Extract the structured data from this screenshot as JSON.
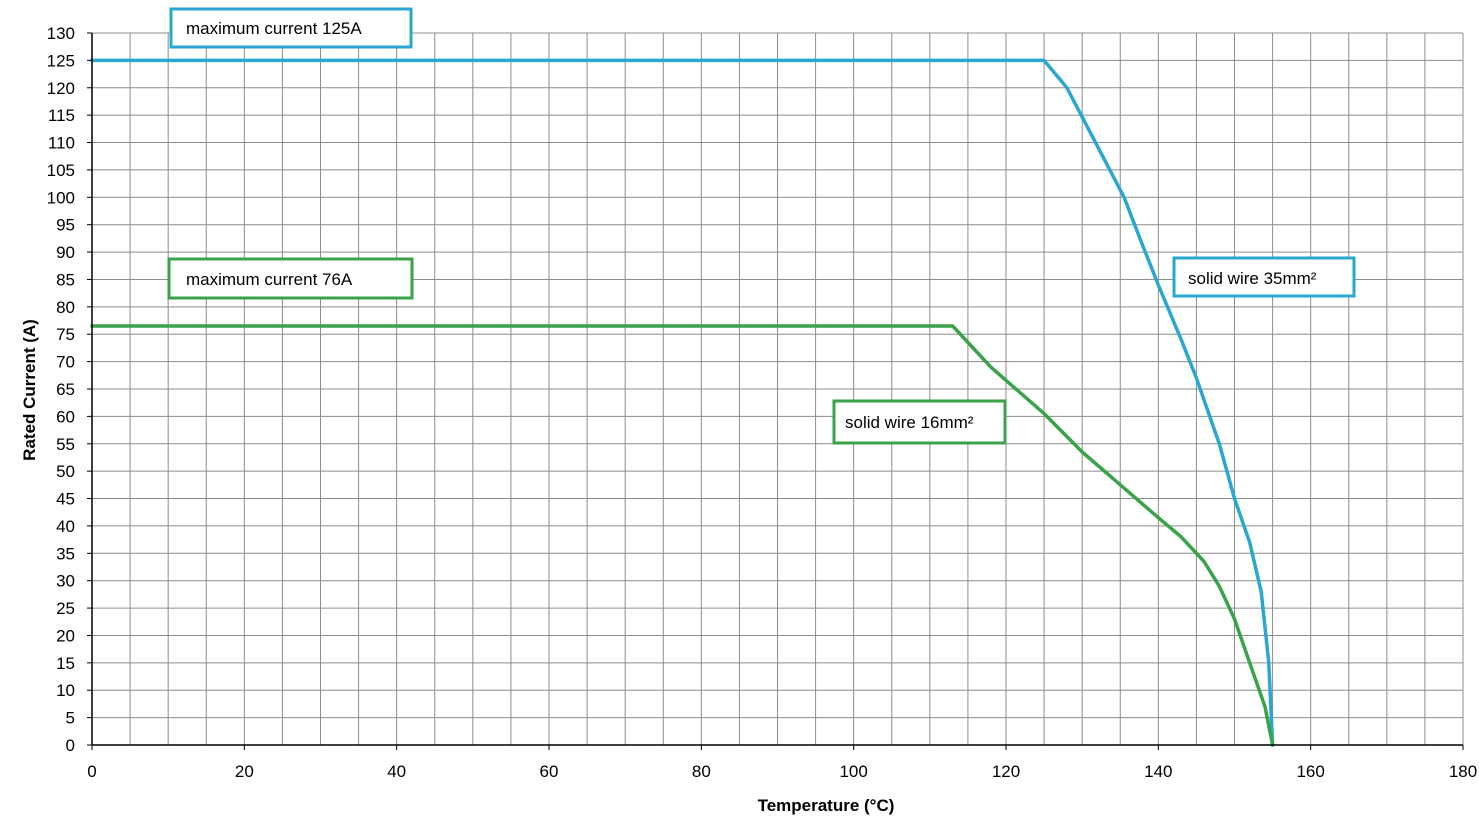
{
  "chart_data": {
    "type": "line",
    "title": "",
    "xlabel": "Temperature (°C)",
    "ylabel": "Rated Current (A)",
    "xlim": [
      0,
      180
    ],
    "ylim": [
      0,
      130
    ],
    "xticks": [
      "0",
      "20",
      "40",
      "60",
      "80",
      "100",
      "120",
      "140",
      "160",
      "180"
    ],
    "yticks": [
      "0",
      "5",
      "10",
      "15",
      "20",
      "25",
      "30",
      "35",
      "40",
      "45",
      "50",
      "55",
      "60",
      "65",
      "70",
      "75",
      "80",
      "85",
      "90",
      "95",
      "100",
      "105",
      "110",
      "115",
      "120",
      "125",
      "130"
    ],
    "grid": true,
    "series": [
      {
        "name": "solid wire 35mm²",
        "color": "#2aa7d1",
        "points": [
          [
            0,
            125
          ],
          [
            125,
            125
          ],
          [
            128,
            120
          ],
          [
            131,
            112
          ],
          [
            135.5,
            100
          ],
          [
            138,
            91
          ],
          [
            140,
            84
          ],
          [
            143,
            74
          ],
          [
            145,
            67
          ],
          [
            148,
            55
          ],
          [
            150,
            45
          ],
          [
            152,
            37
          ],
          [
            153.5,
            28
          ],
          [
            154.5,
            15
          ],
          [
            155,
            0
          ]
        ]
      },
      {
        "name": "solid wire 16mm²",
        "color": "#3aa24a",
        "points": [
          [
            0,
            76.5
          ],
          [
            113,
            76.5
          ],
          [
            118,
            69
          ],
          [
            125,
            60.5
          ],
          [
            130,
            53.5
          ],
          [
            135,
            47.5
          ],
          [
            140,
            41.5
          ],
          [
            143,
            38
          ],
          [
            146,
            33.5
          ],
          [
            148,
            29
          ],
          [
            150,
            23
          ],
          [
            152,
            15
          ],
          [
            154,
            7
          ],
          [
            155,
            0
          ]
        ]
      }
    ],
    "annotations": [
      {
        "id": "ann-max-125",
        "text": "maximum current 125A",
        "color": "#2aa7d1"
      },
      {
        "id": "ann-max-76",
        "text": "maximum current 76A",
        "color": "#3aa24a"
      },
      {
        "id": "ann-35mm",
        "text": "solid wire 35mm²",
        "color": "#2aa7d1"
      },
      {
        "id": "ann-16mm",
        "text": "solid wire 16mm²",
        "color": "#3aa24a"
      }
    ]
  }
}
